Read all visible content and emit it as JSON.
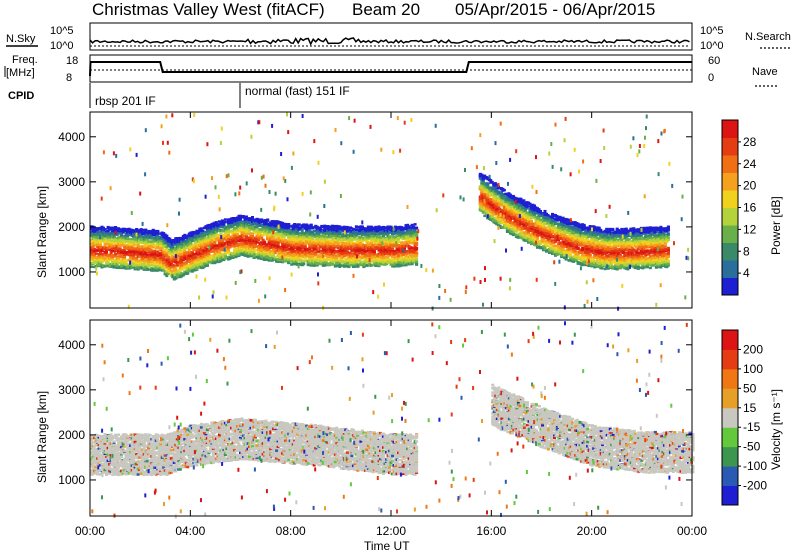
{
  "header": {
    "station": "Christmas Valley West (fitACF)",
    "beam": "Beam 20",
    "dates": "05/Apr/2015 - 06/Apr/2015"
  },
  "top_panels": {
    "nsky_label": "N.Sky",
    "nsky_ticks": [
      "10^5",
      "10^0"
    ],
    "nsky_right_ticks": [
      "10^5",
      "10^0"
    ],
    "nsearch_label": "N.Search",
    "freq_label_1": "Freq.",
    "freq_label_2": "[MHz]",
    "freq_ticks": [
      "18",
      "8"
    ],
    "nave_ticks": [
      "60",
      "0"
    ],
    "nave_label": "Nave",
    "cpid_label": "CPID",
    "cpid_segments": [
      {
        "label": "rbsp 201 IF",
        "start_hour": 0
      },
      {
        "label": "normal (fast) 151 IF",
        "start_hour": 6
      }
    ]
  },
  "chart_data": [
    {
      "type": "heatmap",
      "title": "",
      "xlabel": "Time UT",
      "ylabel": "Slant Range [km]",
      "x_ticks": [
        "00:00",
        "04:00",
        "08:00",
        "12:00",
        "16:00",
        "20:00",
        "00:00"
      ],
      "x_range_hours": [
        0,
        24
      ],
      "y_ticks": [
        "1000",
        "2000",
        "3000",
        "4000"
      ],
      "ylim": [
        200,
        4550
      ],
      "colorbar": {
        "label": "Power [dB]",
        "ticks": [
          "28",
          "24",
          "20",
          "16",
          "12",
          "8",
          "4"
        ],
        "range": [
          0,
          30
        ],
        "colors": [
          "#1e1ed2",
          "#2a6e9c",
          "#3a8a6a",
          "#6ab04a",
          "#b4d23c",
          "#f0d21e",
          "#f5a01e",
          "#f06e14",
          "#e63c14",
          "#dc1414"
        ]
      },
      "bands": [
        {
          "name": "main echo",
          "x": [
            0,
            1,
            2,
            2.8,
            3.2,
            4,
            5,
            6,
            8,
            10,
            12,
            13
          ],
          "y": [
            1500,
            1480,
            1440,
            1400,
            1200,
            1380,
            1600,
            1750,
            1550,
            1500,
            1500,
            1550
          ],
          "value": 26
        },
        {
          "name": "evening echo",
          "x": [
            15.5,
            16.5,
            17.5,
            18.5,
            19.5,
            20.5,
            21.5,
            23
          ],
          "y": [
            2700,
            2300,
            2000,
            1750,
            1550,
            1450,
            1450,
            1500
          ],
          "value": 24
        }
      ]
    },
    {
      "type": "heatmap",
      "title": "",
      "xlabel": "Time UT",
      "ylabel": "Slant Range [km]",
      "x_ticks": [
        "00:00",
        "04:00",
        "08:00",
        "12:00",
        "16:00",
        "20:00",
        "00:00"
      ],
      "x_range_hours": [
        0,
        24
      ],
      "y_ticks": [
        "1000",
        "2000",
        "3000",
        "4000"
      ],
      "ylim": [
        200,
        4550
      ],
      "colorbar": {
        "label": "Velocity [m s⁻¹]",
        "ticks": [
          "200",
          "100",
          "50",
          "15",
          "-15",
          "-50",
          "-100",
          "-200"
        ],
        "range": [
          -250,
          250
        ],
        "colors": [
          "#1e1ed2",
          "#2a5ab4",
          "#3c9650",
          "#64c83c",
          "#c8c8c0",
          "#e6a028",
          "#f07814",
          "#e63c14",
          "#dc1414"
        ]
      },
      "bands": [
        {
          "name": "ground scatter",
          "x": [
            0,
            3,
            4,
            6,
            9,
            12,
            13
          ],
          "y": [
            1500,
            1500,
            1700,
            1850,
            1700,
            1500,
            1500
          ],
          "value": 0
        },
        {
          "name": "evening ground scatter",
          "x": [
            16,
            18,
            20,
            22,
            24
          ],
          "y": [
            2600,
            2100,
            1700,
            1550,
            1550
          ],
          "value": 0
        }
      ]
    }
  ]
}
